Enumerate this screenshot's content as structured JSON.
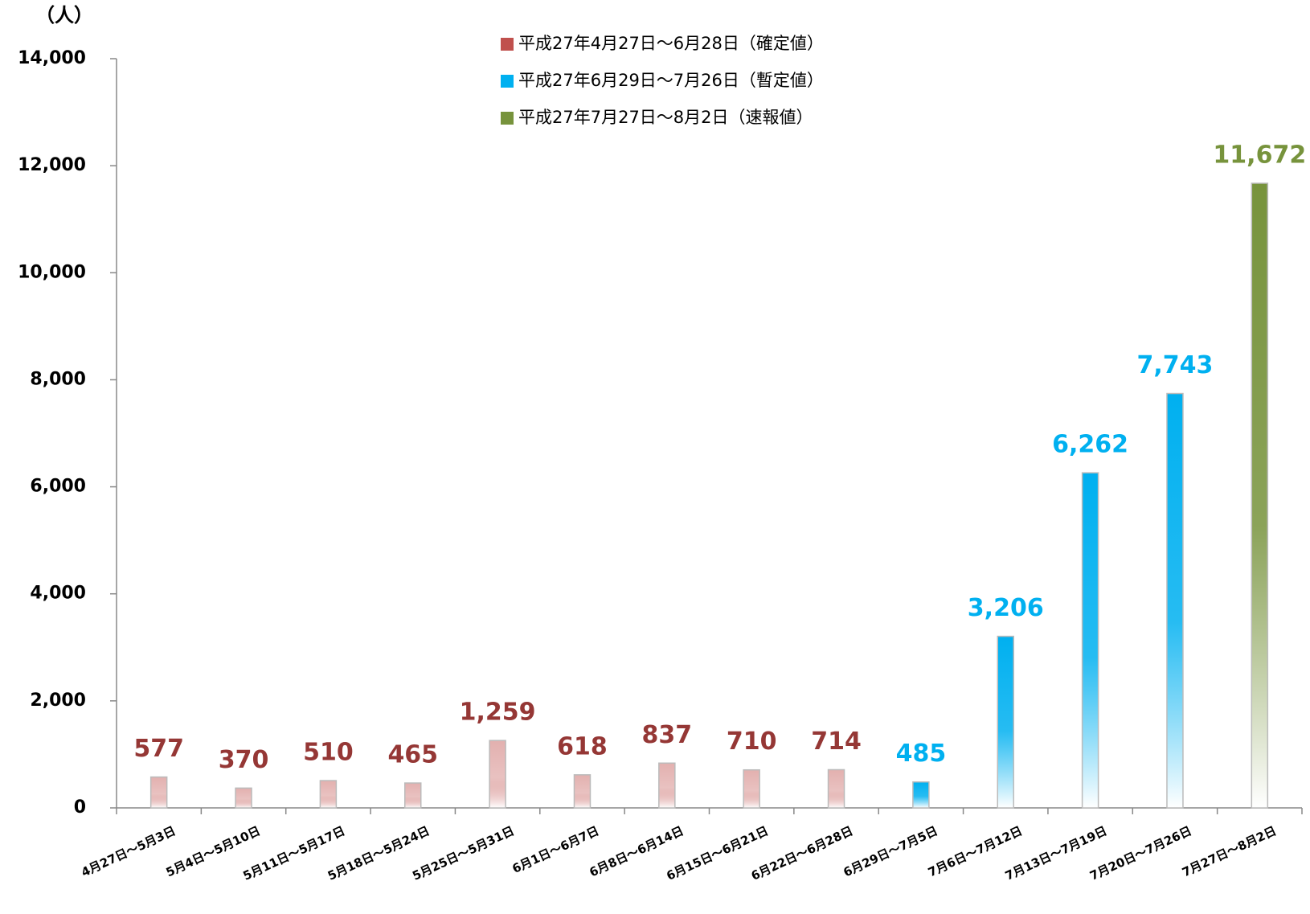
{
  "chart_data": {
    "type": "bar",
    "y_unit": "（人）",
    "categories": [
      "4月27日～5月3日",
      "5月4日～5月10日",
      "5月11日～5月17日",
      "5月18日～5月24日",
      "5月25日～5月31日",
      "6月1日～6月7日",
      "6月8日～6月14日",
      "6月15日～6月21日",
      "6月22日～6月28日",
      "6月29日～7月5日",
      "7月6日～7月12日",
      "7月13日～7月19日",
      "7月20日～7月26日",
      "7月27日～8月2日"
    ],
    "series": [
      {
        "name": "平成27年4月27日～6月28日（確定値）",
        "color": "#c0504d",
        "label_color": "#953735",
        "values": [
          577,
          370,
          510,
          465,
          1259,
          618,
          837,
          710,
          714,
          null,
          null,
          null,
          null,
          null
        ],
        "value_labels": [
          "577",
          "370",
          "510",
          "465",
          "1,259",
          "618",
          "837",
          "710",
          "714",
          null,
          null,
          null,
          null,
          null
        ]
      },
      {
        "name": "平成27年6月29日～7月26日（暫定値）",
        "color": "#00b0f0",
        "label_color": "#00b0f0",
        "values": [
          null,
          null,
          null,
          null,
          null,
          null,
          null,
          null,
          null,
          485,
          3206,
          6262,
          7743,
          null
        ],
        "value_labels": [
          null,
          null,
          null,
          null,
          null,
          null,
          null,
          null,
          null,
          "485",
          "3,206",
          "6,262",
          "7,743",
          null
        ]
      },
      {
        "name": "平成27年7月27日～8月2日（速報値）",
        "color": "#77933c",
        "label_color": "#77933c",
        "values": [
          null,
          null,
          null,
          null,
          null,
          null,
          null,
          null,
          null,
          null,
          null,
          null,
          null,
          11672
        ],
        "value_labels": [
          null,
          null,
          null,
          null,
          null,
          null,
          null,
          null,
          null,
          null,
          null,
          null,
          null,
          "11,672"
        ]
      }
    ],
    "ylim": [
      0,
      14000
    ],
    "yticks": [
      0,
      {
        "value": 2000,
        "label": "2,000"
      },
      {
        "value": 4000,
        "label": "4,000"
      },
      {
        "value": 6000,
        "label": "6,000"
      },
      {
        "value": 8000,
        "label": "8,000"
      },
      {
        "value": 10000,
        "label": "10,000"
      },
      {
        "value": 12000,
        "label": "12,000"
      },
      {
        "value": 14000,
        "label": "14,000"
      }
    ]
  }
}
